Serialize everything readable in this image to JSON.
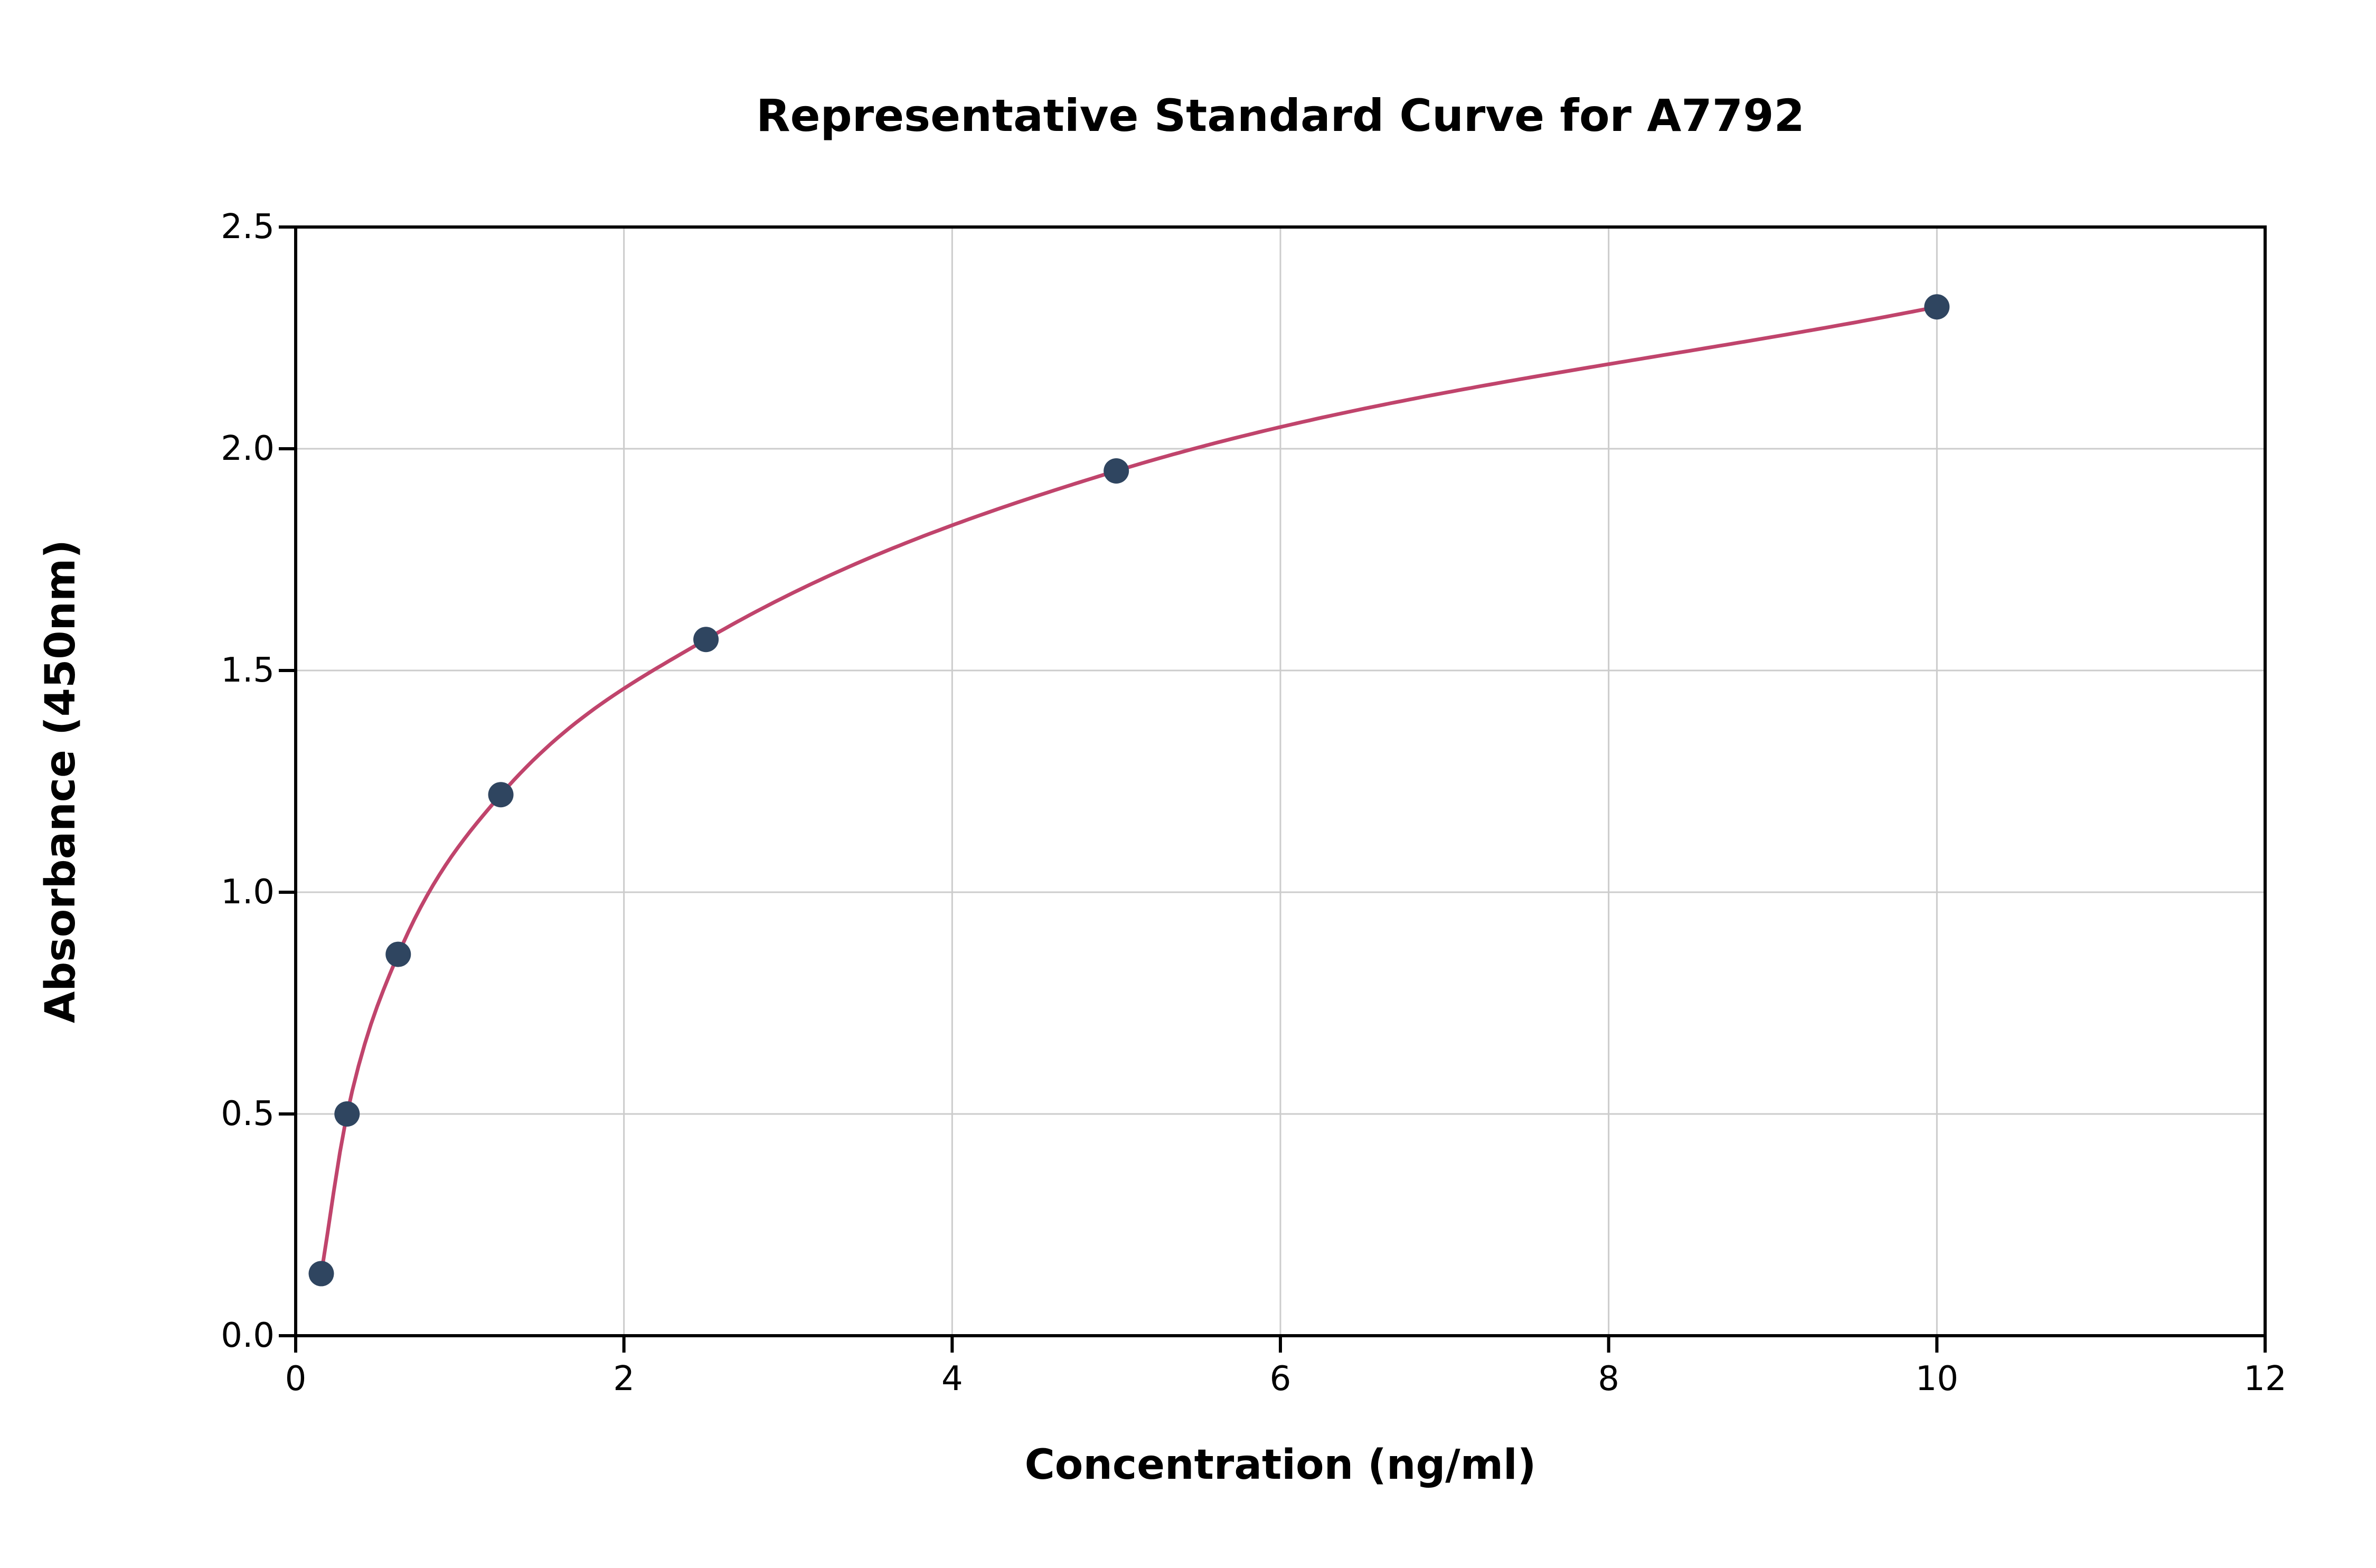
{
  "chart_data": {
    "type": "line",
    "title": "Representative Standard Curve for A7792",
    "xlabel": "Concentration (ng/ml)",
    "ylabel": "Absorbance (450nm)",
    "x": [
      0.156,
      0.313,
      0.625,
      1.25,
      2.5,
      5,
      10
    ],
    "y": [
      0.14,
      0.5,
      0.86,
      1.22,
      1.57,
      1.95,
      2.32
    ],
    "xlim": [
      0,
      12
    ],
    "ylim": [
      0,
      2.5
    ],
    "xticks": [
      0,
      2,
      4,
      6,
      8,
      10,
      12
    ],
    "xtick_labels": [
      "0",
      "2",
      "4",
      "6",
      "8",
      "10",
      "12"
    ],
    "yticks": [
      0.0,
      0.5,
      1.0,
      1.5,
      2.0,
      2.5
    ],
    "ytick_labels": [
      "0.0",
      "0.5",
      "1.0",
      "1.5",
      "2.0",
      "2.5"
    ],
    "grid": true,
    "legend": "none",
    "line_color": "#c0446c",
    "point_color": "#2f4560",
    "grid_color": "#cccccc",
    "axis_color": "#000000"
  }
}
